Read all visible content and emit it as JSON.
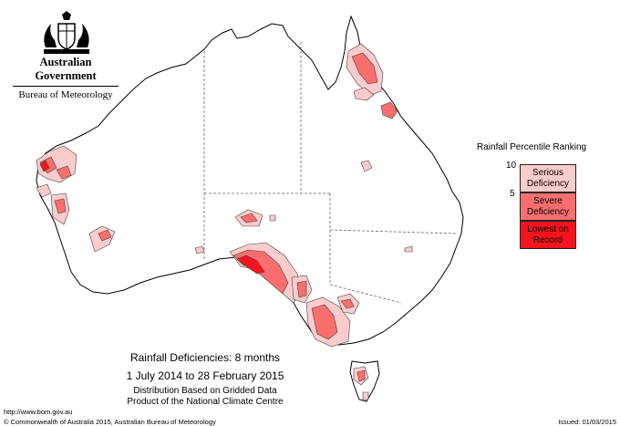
{
  "header": {
    "government": "Australian Government",
    "bureau": "Bureau of Meteorology"
  },
  "legend": {
    "title": "Rainfall Percentile Ranking",
    "ticks": [
      "10",
      "5"
    ],
    "categories": [
      {
        "label": "Serious Deficiency",
        "color": "#fccccc"
      },
      {
        "label": "Severe Deficiency",
        "color": "#fa6e6e"
      },
      {
        "label": "Lowest on Record",
        "color": "#f5141e"
      }
    ]
  },
  "caption": {
    "title": "Rainfall Deficiencies: 8 months",
    "period": "1 July 2014 to 28 February 2015",
    "note1": "Distribution Based on Gridded Data",
    "note2": "Product of the National Climate Centre"
  },
  "footer": {
    "url": "http://www.bom.gov.au",
    "copyright": "© Commonwealth of Australia 2015, Australian Bureau of Meteorology",
    "issued": "Issued: 01/03/2015"
  }
}
